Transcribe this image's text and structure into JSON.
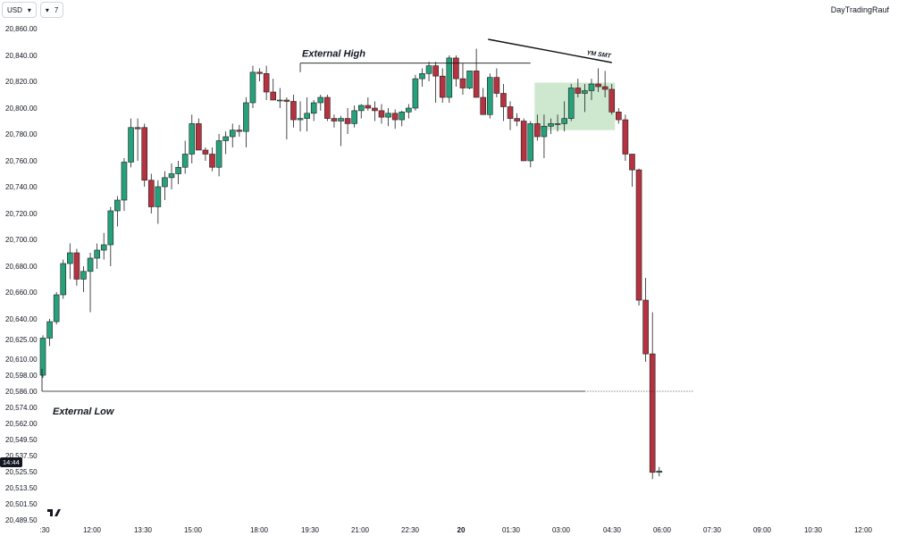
{
  "toolbar": {
    "symbol": "USD",
    "symbol_chevron": "▾",
    "interval": "7",
    "interval_chevron": "▾"
  },
  "brand": "DayTradingRauf",
  "countdown_badge": "14:44",
  "colors": {
    "up": "#26a17b",
    "down": "#b53340",
    "zone": "#c8e6c9",
    "line": "#111111"
  },
  "chart_data": {
    "type": "candlestick",
    "y_ticks": [
      "20,860.00",
      "20,840.00",
      "20,820.00",
      "20,800.00",
      "20,780.00",
      "20,760.00",
      "20,740.00",
      "20,720.00",
      "20,700.00",
      "20,680.00",
      "20,660.00",
      "20,640.00",
      "20,625.00",
      "20,610.00",
      "20,598.00",
      "20,586.00",
      "20,574.00",
      "20,562.00",
      "20,549.50",
      "20,537.50",
      "20,525.50",
      "20,513.50",
      "20,501.50",
      "20,489.50"
    ],
    "x_ticks": [
      ":30",
      "12:00",
      "13:30",
      "15:00",
      "18:00",
      "19:30",
      "21:00",
      "22:30",
      "20",
      "01:30",
      "03:00",
      "04:30",
      "06:00",
      "07:30",
      "09:00",
      "10:30",
      "12:00"
    ],
    "candles": [
      [
        20598,
        20628,
        20596,
        20626
      ],
      [
        20626,
        20640,
        20620,
        20638
      ],
      [
        20638,
        20660,
        20636,
        20658
      ],
      [
        20658,
        20685,
        20655,
        20682
      ],
      [
        20682,
        20697,
        20670,
        20690
      ],
      [
        20690,
        20693,
        20665,
        20670
      ],
      [
        20670,
        20680,
        20660,
        20676
      ],
      [
        20676,
        20690,
        20645,
        20686
      ],
      [
        20686,
        20697,
        20678,
        20692
      ],
      [
        20692,
        20705,
        20685,
        20696
      ],
      [
        20696,
        20725,
        20680,
        20722
      ],
      [
        20722,
        20733,
        20710,
        20730
      ],
      [
        20730,
        20762,
        20722,
        20759
      ],
      [
        20759,
        20792,
        20755,
        20785
      ],
      [
        20785,
        20792,
        20760,
        20784
      ],
      [
        20785,
        20788,
        20740,
        20745
      ],
      [
        20745,
        20750,
        20720,
        20725
      ],
      [
        20725,
        20745,
        20712,
        20740
      ],
      [
        20740,
        20752,
        20730,
        20747
      ],
      [
        20747,
        20758,
        20738,
        20750
      ],
      [
        20750,
        20760,
        20742,
        20755
      ],
      [
        20755,
        20775,
        20750,
        20765
      ],
      [
        20765,
        20795,
        20758,
        20788
      ],
      [
        20788,
        20792,
        20768,
        20768
      ],
      [
        20768,
        20770,
        20760,
        20765
      ],
      [
        20765,
        20770,
        20752,
        20755
      ],
      [
        20755,
        20780,
        20748,
        20775
      ],
      [
        20775,
        20782,
        20765,
        20778
      ],
      [
        20778,
        20788,
        20770,
        20783
      ],
      [
        20783,
        20787,
        20778,
        20782
      ],
      [
        20782,
        20808,
        20770,
        20804
      ],
      [
        20804,
        20832,
        20800,
        20827
      ],
      [
        20827,
        20830,
        20820,
        20826
      ],
      [
        20826,
        20832,
        20806,
        20812
      ],
      [
        20812,
        20822,
        20806,
        20806
      ],
      [
        20806,
        20815,
        20800,
        20806
      ],
      [
        20806,
        20808,
        20776,
        20805
      ],
      [
        20805,
        20810,
        20785,
        20791
      ],
      [
        20791,
        20805,
        20782,
        20792
      ],
      [
        20792,
        20808,
        20782,
        20796
      ],
      [
        20796,
        20806,
        20790,
        20804
      ],
      [
        20804,
        20810,
        20798,
        20808
      ],
      [
        20808,
        20810,
        20790,
        20792
      ],
      [
        20792,
        20795,
        20785,
        20790
      ],
      [
        20790,
        20794,
        20771,
        20792
      ],
      [
        20792,
        20800,
        20780,
        20788
      ],
      [
        20788,
        20802,
        20785,
        20798
      ],
      [
        20798,
        20803,
        20792,
        20802
      ],
      [
        20802,
        20808,
        20798,
        20800
      ],
      [
        20800,
        20805,
        20790,
        20798
      ],
      [
        20798,
        20803,
        20788,
        20793
      ],
      [
        20793,
        20800,
        20786,
        20796
      ],
      [
        20796,
        20799,
        20784,
        20791
      ],
      [
        20791,
        20798,
        20786,
        20797
      ],
      [
        20797,
        20803,
        20792,
        20800
      ],
      [
        20800,
        20825,
        20798,
        20822
      ],
      [
        20822,
        20830,
        20816,
        20826
      ],
      [
        20826,
        20835,
        20820,
        20832
      ],
      [
        20832,
        20835,
        20804,
        20824
      ],
      [
        20824,
        20830,
        20804,
        20808
      ],
      [
        20808,
        20840,
        20804,
        20838
      ],
      [
        20838,
        20840,
        20816,
        20822
      ],
      [
        20822,
        20834,
        20810,
        20815
      ],
      [
        20815,
        20828,
        20814,
        20828
      ],
      [
        20828,
        20845,
        20810,
        20808
      ],
      [
        20808,
        20815,
        20795,
        20795
      ],
      [
        20795,
        20826,
        20792,
        20823
      ],
      [
        20823,
        20830,
        20808,
        20811
      ],
      [
        20811,
        20818,
        20790,
        20801
      ],
      [
        20801,
        20805,
        20783,
        20792
      ],
      [
        20792,
        20796,
        20786,
        20790
      ],
      [
        20790,
        20792,
        20760,
        20760
      ],
      [
        20760,
        20790,
        20755,
        20788
      ],
      [
        20788,
        20795,
        20775,
        20778
      ],
      [
        20778,
        20795,
        20762,
        20786
      ],
      [
        20786,
        20792,
        20780,
        20788
      ],
      [
        20788,
        20795,
        20782,
        20788
      ],
      [
        20788,
        20805,
        20782,
        20792
      ],
      [
        20792,
        20818,
        20790,
        20815
      ],
      [
        20815,
        20822,
        20808,
        20811
      ],
      [
        20811,
        20818,
        20797,
        20813
      ],
      [
        20813,
        20822,
        20806,
        20818
      ],
      [
        20818,
        20830,
        20812,
        20816
      ],
      [
        20816,
        20828,
        20808,
        20814
      ],
      [
        20814,
        20818,
        20795,
        20797
      ],
      [
        20797,
        20800,
        20788,
        20791
      ],
      [
        20791,
        20795,
        20760,
        20765
      ],
      [
        20765,
        20765,
        20740,
        20753
      ],
      [
        20753,
        20754,
        20650,
        20654
      ],
      [
        20654,
        20671,
        20608,
        20614
      ],
      [
        20614,
        20645,
        20520,
        20525
      ],
      [
        20525,
        20529,
        20522,
        20526
      ]
    ],
    "annotations": {
      "external_high": {
        "label": "External High",
        "price": 20834
      },
      "external_low": {
        "label": "External Low",
        "price": 20586
      },
      "smt": {
        "label": "YM SMT"
      }
    },
    "zone": {
      "price_top": 20819,
      "price_bottom": 20783
    }
  }
}
